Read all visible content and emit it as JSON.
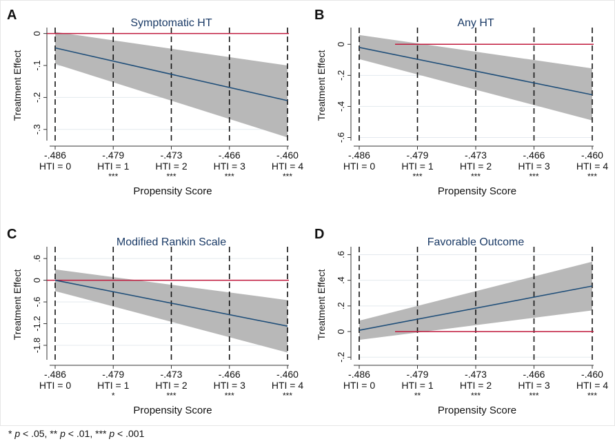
{
  "colors": {
    "line": "#1f4e79",
    "band": "#b8b8b8",
    "zero_line": "#c0183c",
    "grid": "#e3e9ee",
    "title": "#1a3a66",
    "text": "#111111"
  },
  "footnote": {
    "p1": "p",
    "t1": " < .05, ** ",
    "p2": "p",
    "t2": " < .01, *** ",
    "p3": "p",
    "t3": " < .001",
    "lead": "* "
  },
  "chart_data": [
    {
      "panel_letter": "A",
      "title": "Symptomatic HT",
      "type": "line",
      "xlabel": "Propensity Score",
      "ylabel": "Treatment Effect",
      "x_ticks": [
        "-.486",
        "-.479",
        "-.473",
        "-.466",
        "-.460"
      ],
      "x_tick_sublabels": [
        "HTI = 0",
        "HTI = 1",
        "HTI = 2",
        "HTI = 3",
        "HTI = 4"
      ],
      "significance": [
        "",
        "***",
        "***",
        "***",
        "***"
      ],
      "y_ticks": [
        0,
        -0.1,
        -0.2,
        -0.3
      ],
      "y_tick_labels": [
        "0",
        "-.1",
        "-.2",
        "-.3"
      ],
      "ylim": [
        -0.335,
        0.01
      ],
      "x_values": [
        0,
        4
      ],
      "estimate": [
        -0.045,
        -0.21
      ],
      "ci_upper": [
        0.005,
        -0.1
      ],
      "ci_lower": [
        -0.095,
        -0.325
      ],
      "reference_line": 0
    },
    {
      "panel_letter": "B",
      "title": "Any HT",
      "type": "line",
      "xlabel": "Propensity Score",
      "ylabel": "Treatment Effect",
      "x_ticks": [
        "-.486",
        "-.479",
        "-.473",
        "-.466",
        "-.460"
      ],
      "x_tick_sublabels": [
        "HTI = 0",
        "HTI = 1",
        "HTI = 2",
        "HTI = 3",
        "HTI = 4"
      ],
      "significance": [
        "",
        "***",
        "***",
        "***",
        "***"
      ],
      "y_ticks": [
        0,
        -0.2,
        -0.4,
        -0.6
      ],
      "y_tick_labels": [
        "0",
        "-.2",
        "-.4",
        "-.6"
      ],
      "ylim": [
        -0.62,
        0.09
      ],
      "x_values": [
        0,
        4
      ],
      "estimate": [
        -0.02,
        -0.325
      ],
      "ci_upper": [
        0.06,
        -0.155
      ],
      "ci_lower": [
        -0.095,
        -0.49
      ],
      "reference_line": 0
    },
    {
      "panel_letter": "C",
      "title": "Modified Rankin Scale",
      "type": "line",
      "xlabel": "Propensity Score",
      "ylabel": "Treatment Effect",
      "x_ticks": [
        "-.486",
        "-.479",
        "-.473",
        "-.466",
        "-.460"
      ],
      "x_tick_sublabels": [
        "HTI = 0",
        "HTI = 1",
        "HTI = 2",
        "HTI = 3",
        "HTI = 4"
      ],
      "significance": [
        "",
        "*",
        "***",
        "***",
        "***"
      ],
      "y_ticks": [
        0.6,
        0,
        -0.6,
        -1.2,
        -1.8
      ],
      "y_tick_labels": [
        ".6",
        "0",
        "-.6",
        "-1.2",
        "-1.8"
      ],
      "ylim": [
        -2.2,
        0.85
      ],
      "x_values": [
        0,
        4
      ],
      "estimate": [
        0.0,
        -1.27
      ],
      "ci_upper": [
        0.3,
        -0.55
      ],
      "ci_lower": [
        -0.3,
        -2.0
      ],
      "reference_line": 0
    },
    {
      "panel_letter": "D",
      "title": "Favorable Outcome",
      "type": "line",
      "xlabel": "Propensity Score",
      "ylabel": "Treatment Effect",
      "x_ticks": [
        "-.486",
        "-.479",
        "-.473",
        "-.466",
        "-.460"
      ],
      "x_tick_sublabels": [
        "HTI = 0",
        "HTI = 1",
        "HTI = 2",
        "HTI = 3",
        "HTI = 4"
      ],
      "significance": [
        "",
        "**",
        "***",
        "***",
        "***"
      ],
      "y_ticks": [
        0.6,
        0.4,
        0.2,
        0,
        -0.2
      ],
      "y_tick_labels": [
        ".6",
        ".4",
        ".2",
        "0",
        "-.2"
      ],
      "ylim": [
        -0.22,
        0.64
      ],
      "x_values": [
        0,
        4
      ],
      "estimate": [
        0.01,
        0.355
      ],
      "ci_upper": [
        0.085,
        0.545
      ],
      "ci_lower": [
        -0.065,
        0.165
      ],
      "reference_line": 0
    }
  ]
}
